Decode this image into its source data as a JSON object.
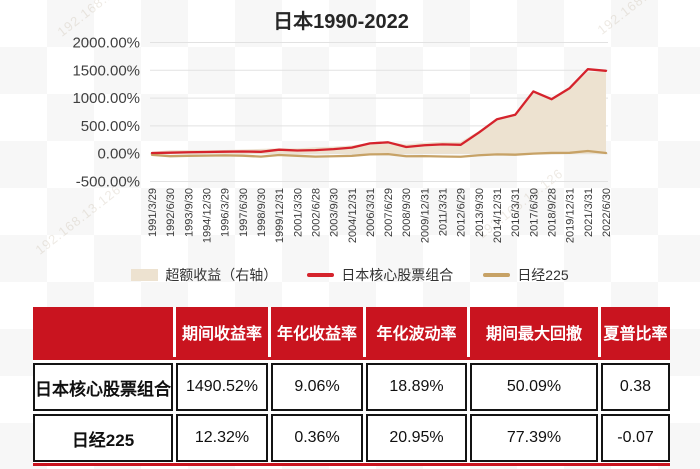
{
  "page": {
    "title": "日本1990-2022"
  },
  "watermark": {
    "text": "192.168.13.126"
  },
  "chart_data": {
    "type": "line",
    "title": "日本1990-2022",
    "x_labels": [
      "1991/3/29",
      "1992/6/30",
      "1993/9/30",
      "1994/12/30",
      "1996/3/29",
      "1997/6/30",
      "1998/9/30",
      "1999/12/31",
      "2001/3/30",
      "2002/6/28",
      "2003/9/30",
      "2004/12/31",
      "2006/3/31",
      "2007/6/29",
      "2008/9/30",
      "2009/12/31",
      "2011/3/31",
      "2012/6/29",
      "2013/9/30",
      "2014/12/31",
      "2016/3/31",
      "2017/6/30",
      "2018/9/28",
      "2019/12/31",
      "2021/3/31",
      "2022/6/30"
    ],
    "y_ticks": [
      "2000.00%",
      "1500.00%",
      "1000.00%",
      "500.00%",
      "0.00%",
      "-500.00%"
    ],
    "ylim": [
      -500,
      2000
    ],
    "y_unit": "%",
    "grid": true,
    "legend_position": "bottom",
    "series": [
      {
        "name": "超额收益（右轴）",
        "type": "area",
        "color": "#ede2d0",
        "values": [
          32,
          63,
          64,
          64,
          66,
          76,
          86,
          96,
          96,
          116,
          128,
          148,
          197,
          213,
          166,
          196,
          218,
          215,
          408,
          632,
          718,
          1118,
          966,
          1164,
          1472,
          1478.2
        ]
      },
      {
        "name": "日本核心股票组合",
        "type": "line",
        "color": "#d5232c",
        "values": [
          12,
          18,
          26,
          30,
          36,
          40,
          34,
          72,
          58,
          64,
          82,
          110,
          185,
          205,
          120,
          152,
          168,
          160,
          380,
          620,
          700,
          1120,
          980,
          1180,
          1520,
          1490.52
        ]
      },
      {
        "name": "日经225",
        "type": "line",
        "color": "#c7a266",
        "values": [
          -20,
          -45,
          -38,
          -34,
          -30,
          -36,
          -52,
          -24,
          -38,
          -52,
          -46,
          -38,
          -12,
          -8,
          -46,
          -44,
          -50,
          -55,
          -28,
          -12,
          -18,
          2,
          14,
          16,
          48,
          12.32
        ]
      }
    ]
  },
  "table": {
    "headers": [
      "",
      "期间收益率",
      "年化收益率",
      "年化波动率",
      "期间最大回撤",
      "夏普比率"
    ],
    "rows": [
      {
        "name": "日本核心股票组合",
        "values": [
          "1490.52%",
          "9.06%",
          "18.89%",
          "50.09%",
          "0.38"
        ]
      },
      {
        "name": "日经225",
        "values": [
          "12.32%",
          "0.36%",
          "20.95%",
          "77.39%",
          "-0.07"
        ]
      }
    ]
  }
}
